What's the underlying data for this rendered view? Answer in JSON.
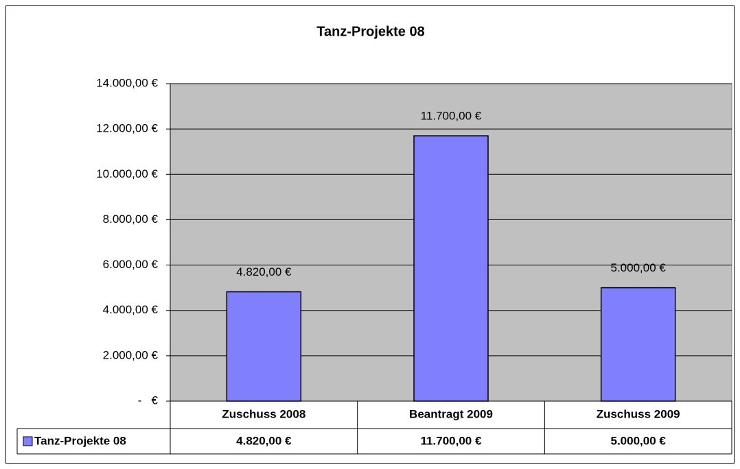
{
  "chart_data": {
    "type": "bar",
    "title": "Tanz-Projekte 08",
    "categories": [
      "Zuschuss 2008",
      "Beantragt 2009",
      "Zuschuss 2009"
    ],
    "series": [
      {
        "name": "Tanz-Projekte 08",
        "color": "#8080ff",
        "values": [
          4820,
          11700,
          5000
        ],
        "value_labels": [
          "4.820,00 €",
          "11.700,00 €",
          "5.000,00 €"
        ]
      }
    ],
    "ylim": [
      0,
      14000
    ],
    "yticks": [
      {
        "value": 0,
        "label": "-   €"
      },
      {
        "value": 2000,
        "label": "2.000,00 €"
      },
      {
        "value": 4000,
        "label": "4.000,00 €"
      },
      {
        "value": 6000,
        "label": "6.000,00 €"
      },
      {
        "value": 8000,
        "label": "8.000,00 €"
      },
      {
        "value": 10000,
        "label": "10.000,00 €"
      },
      {
        "value": 12000,
        "label": "12.000,00 €"
      },
      {
        "value": 14000,
        "label": "14.000,00 €"
      }
    ],
    "grid": true,
    "plot_background": "#c0c0c0"
  }
}
